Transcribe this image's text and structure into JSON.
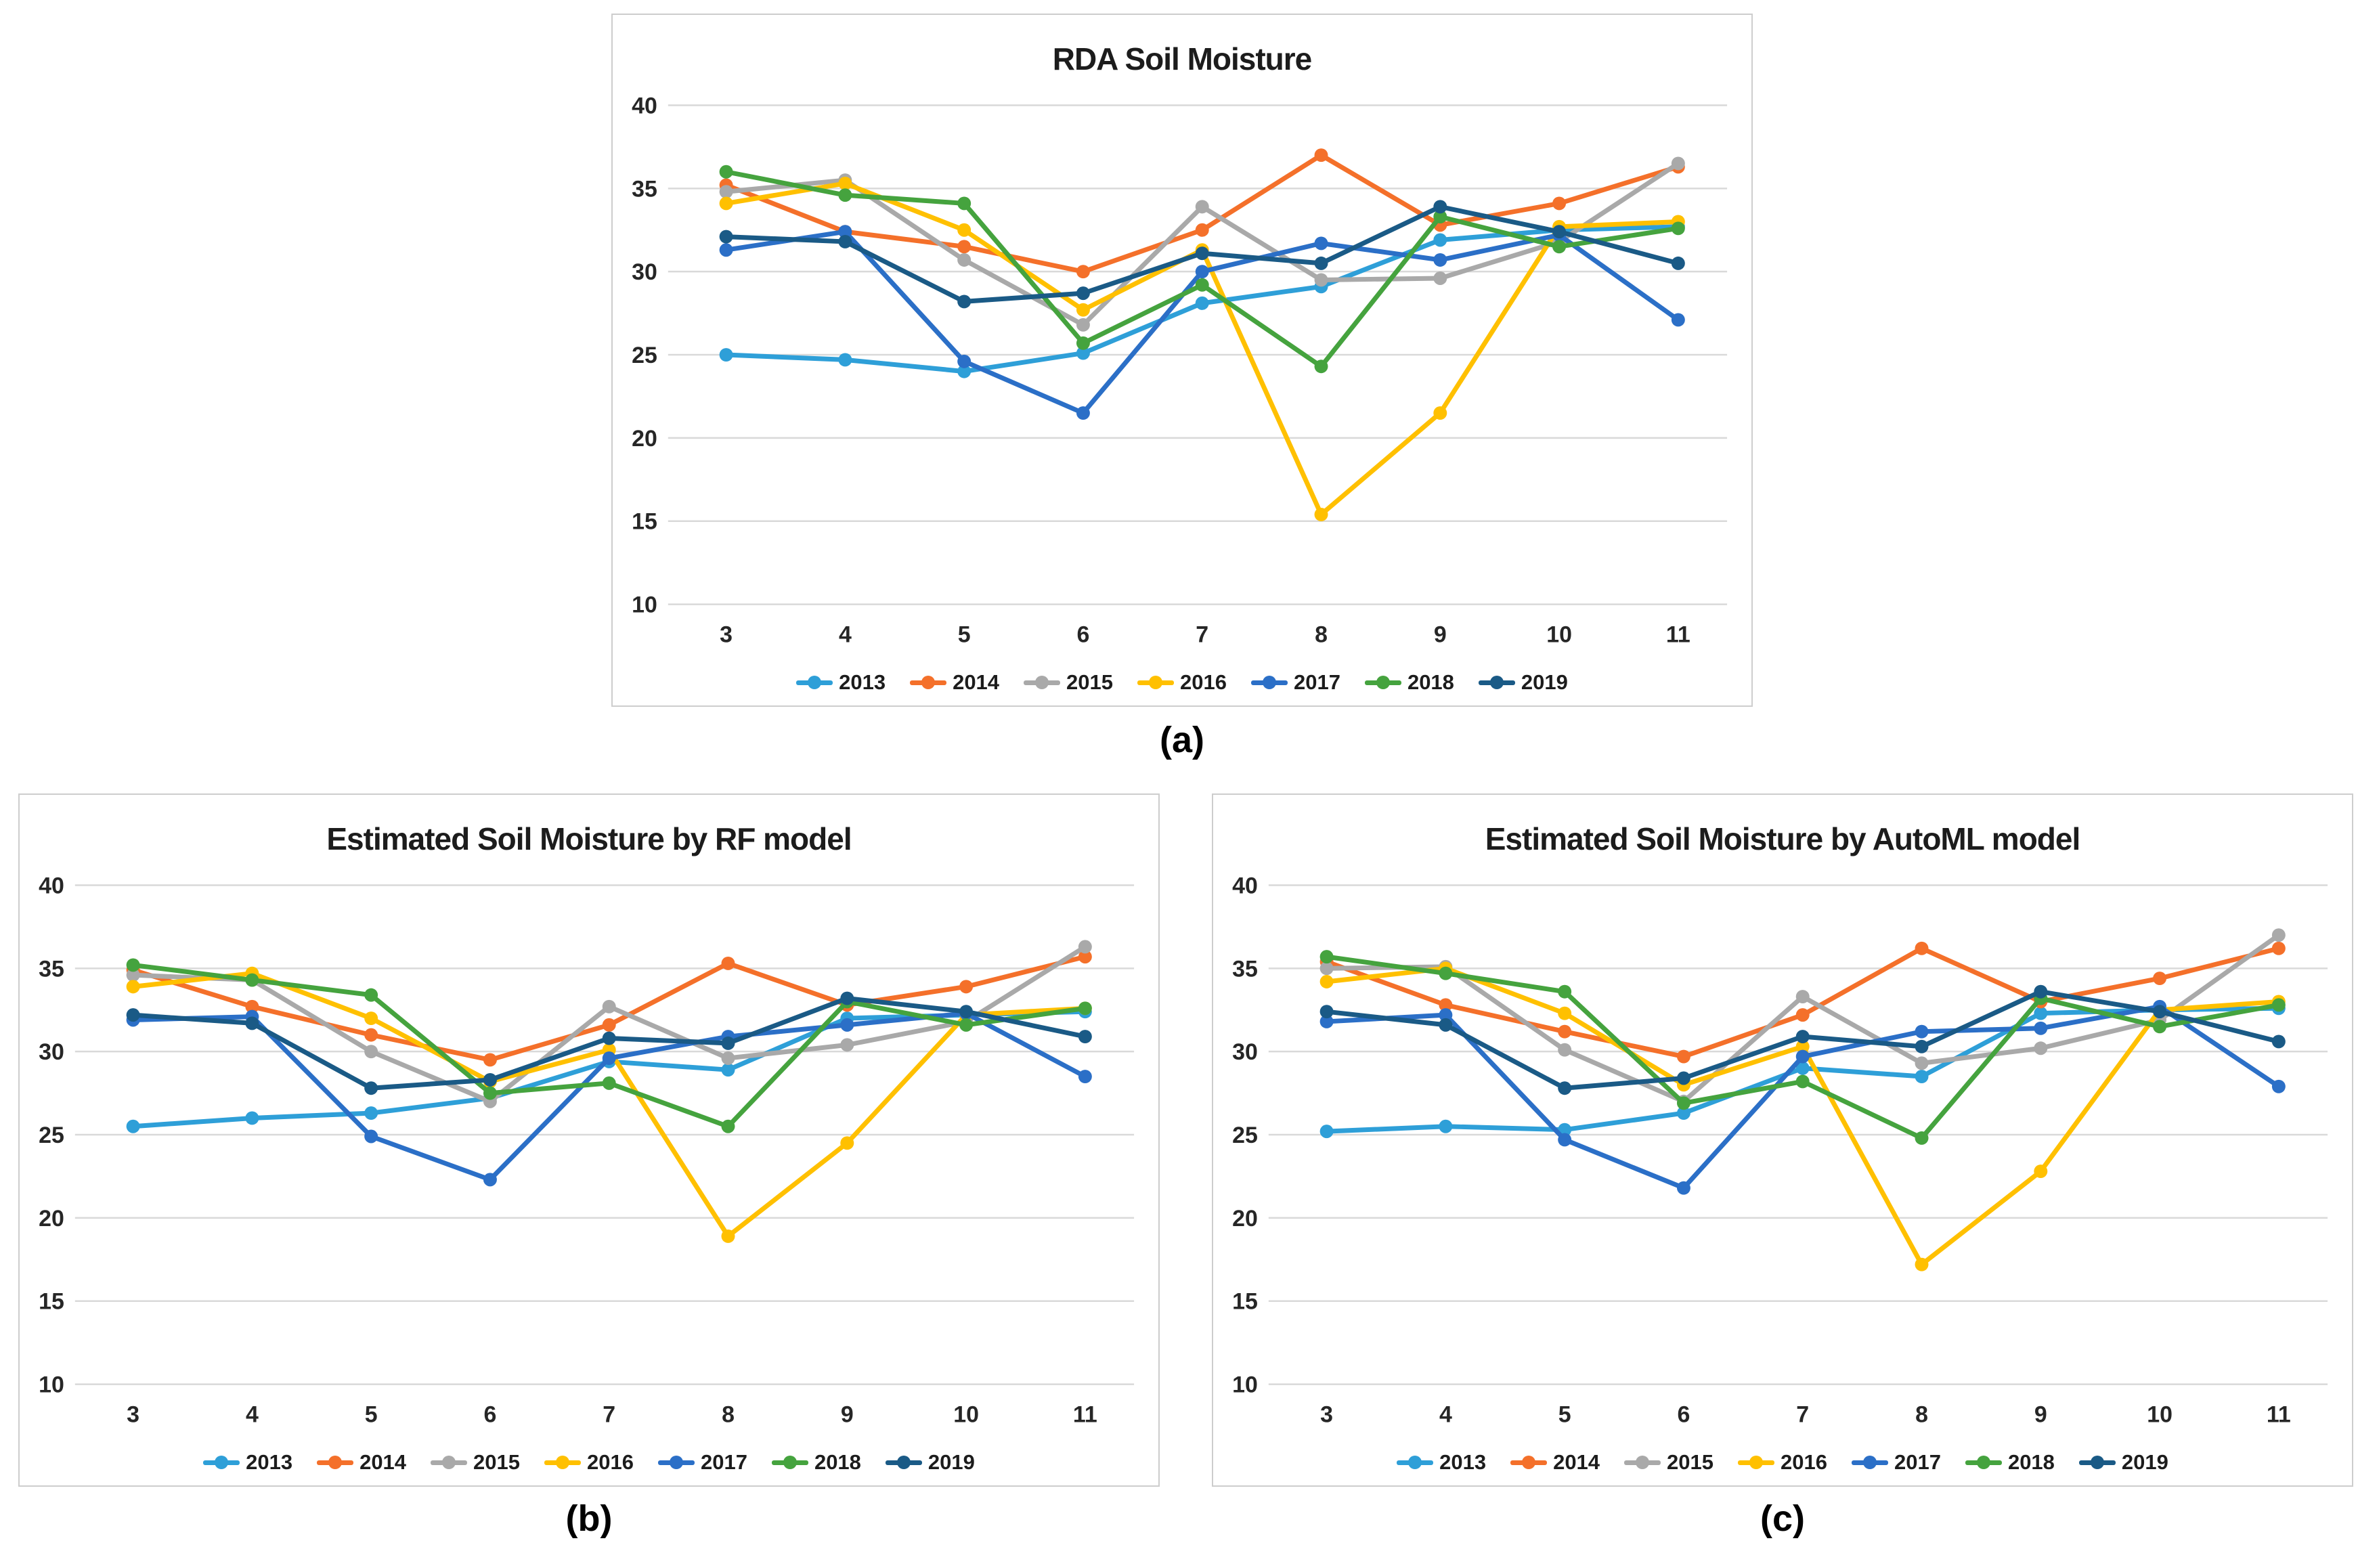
{
  "figure": {
    "captions": {
      "a": "(a)",
      "b": "(b)",
      "c": "(c)"
    }
  },
  "colors": {
    "grid": "#d9d9d9",
    "text": "#1c1c1c",
    "box_border": "#cdcdcd"
  },
  "chart_data": [
    {
      "id": "a",
      "type": "line",
      "title": "RDA Soil Moisture",
      "xlabel": "",
      "ylabel": "",
      "x": [
        3,
        4,
        5,
        6,
        7,
        8,
        9,
        10,
        11
      ],
      "ylim": [
        10,
        40
      ],
      "y_ticks": [
        40,
        35,
        30,
        25,
        20,
        15,
        10
      ],
      "grid": "horizontal",
      "legend_position": "bottom",
      "marker": "circle",
      "series": [
        {
          "name": "2013",
          "color": "#2E9FD8",
          "values": [
            25.0,
            24.7,
            24.0,
            25.1,
            28.1,
            29.1,
            31.9,
            32.5,
            32.7
          ]
        },
        {
          "name": "2014",
          "color": "#F4702A",
          "values": [
            35.2,
            32.4,
            31.5,
            30.0,
            32.5,
            37.0,
            32.8,
            34.1,
            36.3
          ]
        },
        {
          "name": "2015",
          "color": "#A9A9A9",
          "values": [
            34.8,
            35.5,
            30.7,
            26.8,
            33.9,
            29.5,
            29.6,
            31.8,
            36.5
          ]
        },
        {
          "name": "2016",
          "color": "#FFC000",
          "values": [
            34.1,
            35.3,
            32.5,
            27.7,
            31.3,
            15.4,
            21.5,
            32.7,
            33.0
          ]
        },
        {
          "name": "2017",
          "color": "#2B6FC7",
          "values": [
            31.3,
            32.4,
            24.6,
            21.5,
            30.0,
            31.7,
            30.7,
            32.2,
            27.1
          ]
        },
        {
          "name": "2018",
          "color": "#45A33E",
          "values": [
            36.0,
            34.6,
            34.1,
            25.7,
            29.2,
            24.3,
            33.3,
            31.5,
            32.6
          ]
        },
        {
          "name": "2019",
          "color": "#1A5A86",
          "values": [
            32.1,
            31.8,
            28.2,
            28.7,
            31.1,
            30.5,
            33.9,
            32.4,
            30.5
          ]
        }
      ]
    },
    {
      "id": "b",
      "type": "line",
      "title": "Estimated Soil Moisture by RF model",
      "xlabel": "",
      "ylabel": "",
      "x": [
        3,
        4,
        5,
        6,
        7,
        8,
        9,
        10,
        11
      ],
      "ylim": [
        10,
        40
      ],
      "y_ticks": [
        40,
        35,
        30,
        25,
        20,
        15,
        10
      ],
      "grid": "horizontal",
      "legend_position": "bottom",
      "marker": "circle",
      "series": [
        {
          "name": "2013",
          "color": "#2E9FD8",
          "values": [
            25.5,
            26.0,
            26.3,
            27.2,
            29.4,
            28.9,
            32.0,
            32.2,
            32.4
          ]
        },
        {
          "name": "2014",
          "color": "#F4702A",
          "values": [
            34.9,
            32.7,
            31.0,
            29.5,
            31.6,
            35.3,
            32.8,
            33.9,
            35.7
          ]
        },
        {
          "name": "2015",
          "color": "#A9A9A9",
          "values": [
            34.6,
            34.3,
            30.0,
            27.0,
            32.7,
            29.6,
            30.4,
            31.8,
            36.3
          ]
        },
        {
          "name": "2016",
          "color": "#FFC000",
          "values": [
            33.9,
            34.7,
            32.0,
            28.2,
            30.1,
            18.9,
            24.5,
            32.2,
            32.6
          ]
        },
        {
          "name": "2017",
          "color": "#2B6FC7",
          "values": [
            31.9,
            32.1,
            24.9,
            22.3,
            29.6,
            30.9,
            31.6,
            32.3,
            28.5
          ]
        },
        {
          "name": "2018",
          "color": "#45A33E",
          "values": [
            35.2,
            34.3,
            33.4,
            27.5,
            28.1,
            25.5,
            33.0,
            31.6,
            32.6
          ]
        },
        {
          "name": "2019",
          "color": "#1A5A86",
          "values": [
            32.2,
            31.7,
            27.8,
            28.3,
            30.8,
            30.5,
            33.2,
            32.4,
            30.9
          ]
        }
      ]
    },
    {
      "id": "c",
      "type": "line",
      "title": "Estimated Soil Moisture by AutoML model",
      "xlabel": "",
      "ylabel": "",
      "x": [
        3,
        4,
        5,
        6,
        7,
        8,
        9,
        10,
        11
      ],
      "ylim": [
        10,
        40
      ],
      "y_ticks": [
        40,
        35,
        30,
        25,
        20,
        15,
        10
      ],
      "grid": "horizontal",
      "legend_position": "bottom",
      "marker": "circle",
      "series": [
        {
          "name": "2013",
          "color": "#2E9FD8",
          "values": [
            25.2,
            25.5,
            25.3,
            26.3,
            29.0,
            28.5,
            32.3,
            32.5,
            32.6
          ]
        },
        {
          "name": "2014",
          "color": "#F4702A",
          "values": [
            35.4,
            32.8,
            31.2,
            29.7,
            32.2,
            36.2,
            33.0,
            34.4,
            36.2
          ]
        },
        {
          "name": "2015",
          "color": "#A9A9A9",
          "values": [
            35.0,
            35.1,
            30.1,
            27.0,
            33.3,
            29.3,
            30.2,
            31.9,
            37.0
          ]
        },
        {
          "name": "2016",
          "color": "#FFC000",
          "values": [
            34.2,
            35.0,
            32.3,
            28.0,
            30.3,
            17.2,
            22.8,
            32.5,
            33.0
          ]
        },
        {
          "name": "2017",
          "color": "#2B6FC7",
          "values": [
            31.8,
            32.2,
            24.7,
            21.8,
            29.7,
            31.2,
            31.4,
            32.7,
            27.9
          ]
        },
        {
          "name": "2018",
          "color": "#45A33E",
          "values": [
            35.7,
            34.7,
            33.6,
            26.9,
            28.2,
            24.8,
            33.2,
            31.5,
            32.8
          ]
        },
        {
          "name": "2019",
          "color": "#1A5A86",
          "values": [
            32.4,
            31.6,
            27.8,
            28.4,
            30.9,
            30.3,
            33.6,
            32.4,
            30.6
          ]
        }
      ]
    }
  ]
}
